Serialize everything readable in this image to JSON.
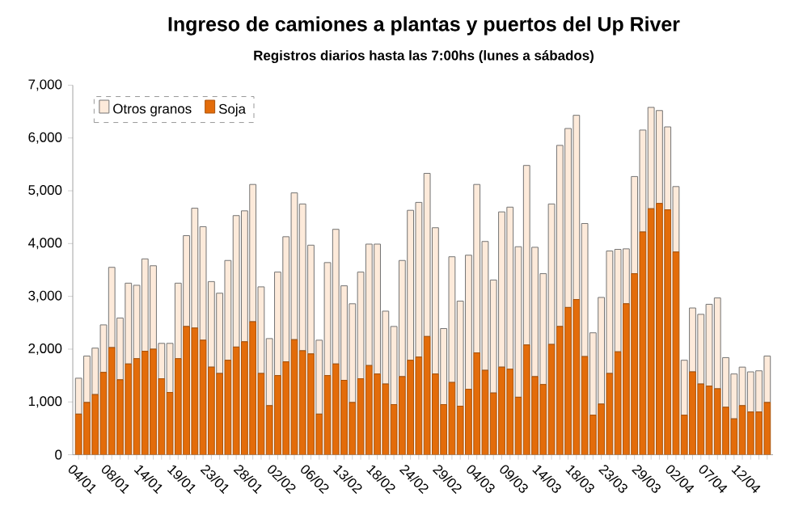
{
  "chart_data": {
    "type": "bar",
    "title": "Ingreso de camiones a plantas y puertos del Up River",
    "subtitle": "Registros diarios hasta las 7:00hs (lunes a sábados)",
    "categories": [
      "04/01",
      null,
      null,
      null,
      "08/01",
      null,
      null,
      null,
      "14/01",
      null,
      null,
      null,
      "19/01",
      null,
      null,
      null,
      "23/01",
      null,
      null,
      null,
      "28/01",
      null,
      null,
      null,
      "02/02",
      null,
      null,
      null,
      "06/02",
      null,
      null,
      null,
      "13/02",
      null,
      null,
      null,
      "18/02",
      null,
      null,
      null,
      "24/02",
      null,
      null,
      null,
      "29/02",
      null,
      null,
      null,
      "04/03",
      null,
      null,
      null,
      "09/03",
      null,
      null,
      null,
      "14/03",
      null,
      null,
      null,
      "18/03",
      null,
      null,
      null,
      "23/03",
      null,
      null,
      null,
      "29/03",
      null,
      null,
      null,
      "02/04",
      null,
      null,
      null,
      "07/04",
      null,
      null,
      null,
      "12/04",
      null,
      null,
      null
    ],
    "stacked": true,
    "series": [
      {
        "name": "Soja",
        "color": "#e36c0a",
        "values": [
          770,
          990,
          1140,
          1560,
          2030,
          1420,
          1720,
          1820,
          1960,
          2000,
          1440,
          1180,
          1820,
          2430,
          2400,
          2170,
          1660,
          1540,
          1790,
          2040,
          2140,
          2520,
          1540,
          930,
          1500,
          1760,
          2180,
          1970,
          1910,
          770,
          1500,
          1720,
          1410,
          990,
          1440,
          1690,
          1530,
          1340,
          950,
          1480,
          1790,
          1850,
          2240,
          1530,
          950,
          1370,
          920,
          1240,
          1930,
          1600,
          1170,
          1660,
          1620,
          1090,
          2080,
          1480,
          1330,
          2090,
          2430,
          2790,
          2940,
          1860,
          750,
          960,
          1540,
          1950,
          2860,
          3430,
          4220,
          4660,
          4760,
          4640,
          3840,
          750,
          1570,
          1340,
          1300,
          1250,
          900,
          680,
          930,
          810,
          810,
          990
        ]
      },
      {
        "name": "Otros granos",
        "color": "#fdeada",
        "values": [
          680,
          880,
          880,
          900,
          1520,
          1170,
          1530,
          1390,
          1750,
          1580,
          670,
          930,
          1430,
          1720,
          2270,
          2150,
          1620,
          1520,
          1890,
          2490,
          2480,
          2600,
          1640,
          1270,
          1960,
          2370,
          2780,
          2780,
          2060,
          1400,
          2140,
          2550,
          1790,
          1870,
          2020,
          2300,
          2460,
          1380,
          1480,
          2200,
          2840,
          2930,
          3090,
          2770,
          1440,
          2380,
          1990,
          2540,
          3190,
          2440,
          2140,
          2940,
          3070,
          2850,
          3400,
          2450,
          2100,
          2660,
          3430,
          3390,
          3490,
          2520,
          1560,
          2020,
          2320,
          1940,
          1040,
          1840,
          1930,
          1920,
          1760,
          1570,
          1240,
          1040,
          1210,
          1320,
          1550,
          1720,
          940,
          850,
          730,
          760,
          780,
          880
        ]
      }
    ],
    "ylim": [
      0,
      7000
    ],
    "yticks": [
      0,
      {
        "value": 1000,
        "label": "1,000"
      },
      {
        "value": 2000,
        "label": "2,000"
      },
      {
        "value": 3000,
        "label": "3,000"
      },
      {
        "value": 4000,
        "label": "4,000"
      },
      {
        "value": 5000,
        "label": "5,000"
      },
      {
        "value": 6000,
        "label": "6,000"
      },
      {
        "value": 7000,
        "label": "7,000"
      }
    ],
    "legend": "top left",
    "grid": false
  }
}
